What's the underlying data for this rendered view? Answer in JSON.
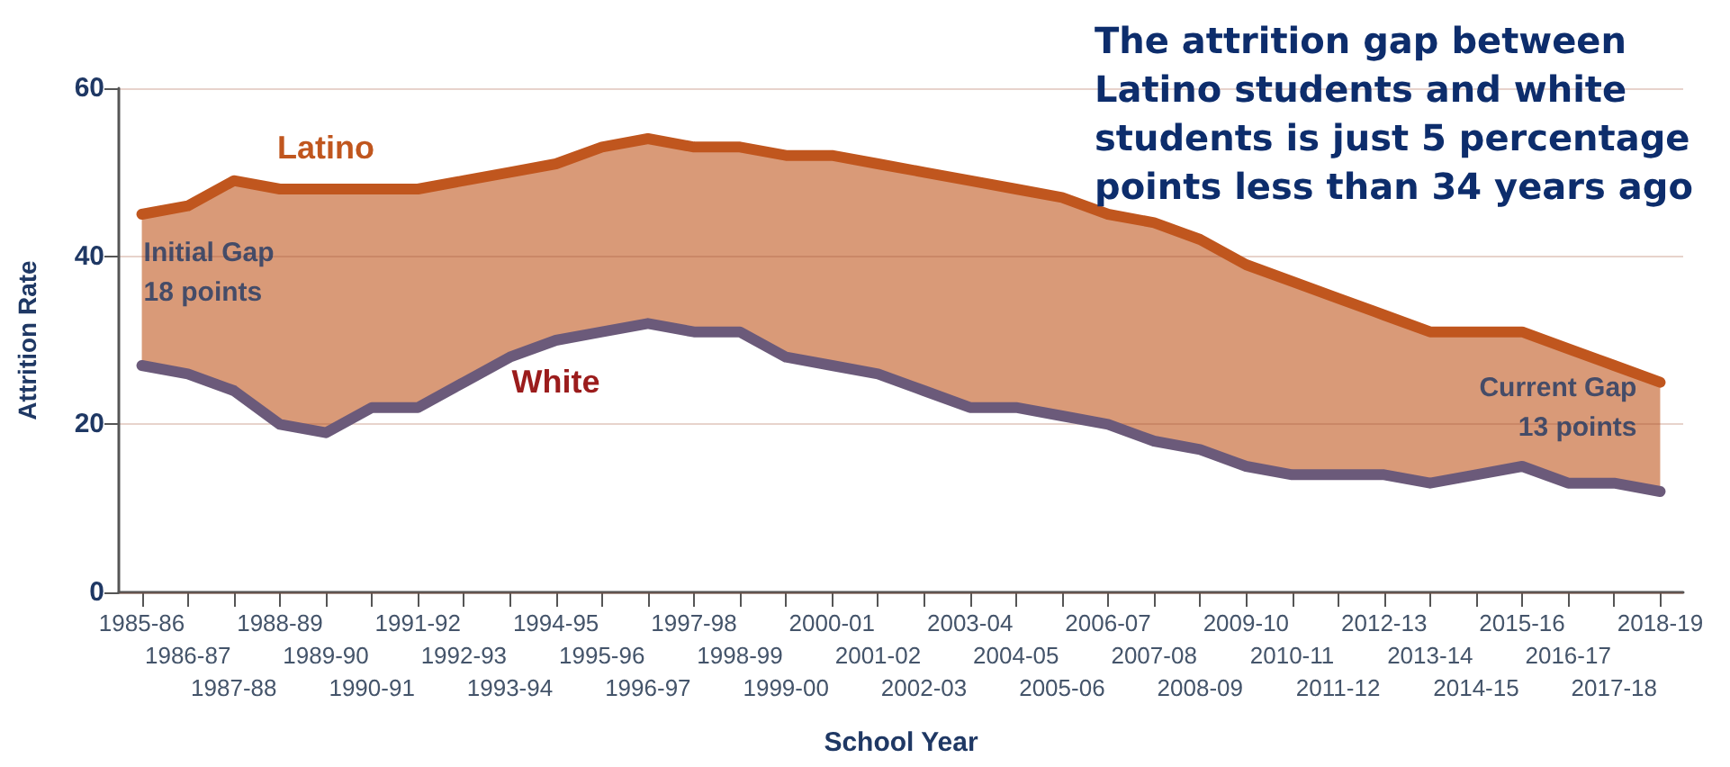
{
  "chart_data": {
    "type": "line",
    "title": "The attrition gap between Latino students and white students is just 5 percentage points less than 34 years ago",
    "xlabel": "School Year",
    "ylabel": "Attrition Rate",
    "categories": [
      "1985-86",
      "1986-87",
      "1987-88",
      "1988-89",
      "1989-90",
      "1990-91",
      "1991-92",
      "1992-93",
      "1993-94",
      "1994-95",
      "1995-96",
      "1996-97",
      "1997-98",
      "1998-99",
      "1999-00",
      "2000-01",
      "2001-02",
      "2002-03",
      "2003-04",
      "2004-05",
      "2005-06",
      "2006-07",
      "2007-08",
      "2008-09",
      "2009-10",
      "2010-11",
      "2011-12",
      "2012-13",
      "2013-14",
      "2014-15",
      "2015-16",
      "2016-17",
      "2017-18",
      "2018-19"
    ],
    "series": [
      {
        "name": "Latino",
        "type": "area",
        "color": "#c0561e",
        "values": [
          45,
          46,
          49,
          48,
          48,
          48,
          48,
          49,
          50,
          51,
          53,
          54,
          53,
          53,
          52,
          52,
          51,
          50,
          49,
          48,
          47,
          45,
          44,
          42,
          39,
          37,
          35,
          33,
          31,
          31,
          31,
          29,
          27,
          25
        ]
      },
      {
        "name": "White",
        "type": "line",
        "color": "#6b5a7a",
        "values": [
          27,
          26,
          24,
          20,
          19,
          22,
          22,
          25,
          28,
          30,
          31,
          32,
          31,
          31,
          28,
          27,
          26,
          24,
          22,
          22,
          21,
          20,
          18,
          17,
          15,
          14,
          14,
          14,
          13,
          14,
          15,
          13,
          13,
          12
        ]
      }
    ],
    "ylim": [
      0,
      60
    ],
    "yticks": [
      0,
      20,
      40,
      60
    ],
    "grid": "y",
    "legend": false,
    "marker": "none",
    "line_style": "solid",
    "annotations": [
      {
        "text": "Initial Gap\n18 points",
        "x": "1985-86",
        "y": 38
      },
      {
        "text": "Current Gap\n13 points",
        "x": "2018-19",
        "y": 22
      }
    ]
  }
}
